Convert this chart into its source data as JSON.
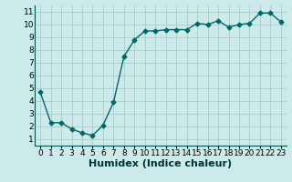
{
  "x": [
    0,
    1,
    2,
    3,
    4,
    5,
    6,
    7,
    8,
    9,
    10,
    11,
    12,
    13,
    14,
    15,
    16,
    17,
    18,
    19,
    20,
    21,
    22,
    23
  ],
  "y": [
    4.7,
    2.3,
    2.3,
    1.8,
    1.5,
    1.3,
    2.1,
    3.9,
    7.5,
    8.8,
    9.5,
    9.5,
    9.6,
    9.6,
    9.6,
    10.1,
    10.0,
    10.3,
    9.8,
    10.0,
    10.1,
    10.9,
    10.9,
    10.2
  ],
  "line_color": "#006868",
  "marker": "D",
  "markersize": 2.5,
  "linewidth": 1.0,
  "xlabel": "Humidex (Indice chaleur)",
  "xlabel_fontsize": 8,
  "xlim": [
    -0.5,
    23.5
  ],
  "ylim": [
    0.5,
    11.5
  ],
  "yticks": [
    1,
    2,
    3,
    4,
    5,
    6,
    7,
    8,
    9,
    10,
    11
  ],
  "xticks": [
    0,
    1,
    2,
    3,
    4,
    5,
    6,
    7,
    8,
    9,
    10,
    11,
    12,
    13,
    14,
    15,
    16,
    17,
    18,
    19,
    20,
    21,
    22,
    23
  ],
  "bg_color": "#cceaea",
  "grid_color": "#aacccc",
  "tick_fontsize": 6.5,
  "spine_color": "#005555"
}
